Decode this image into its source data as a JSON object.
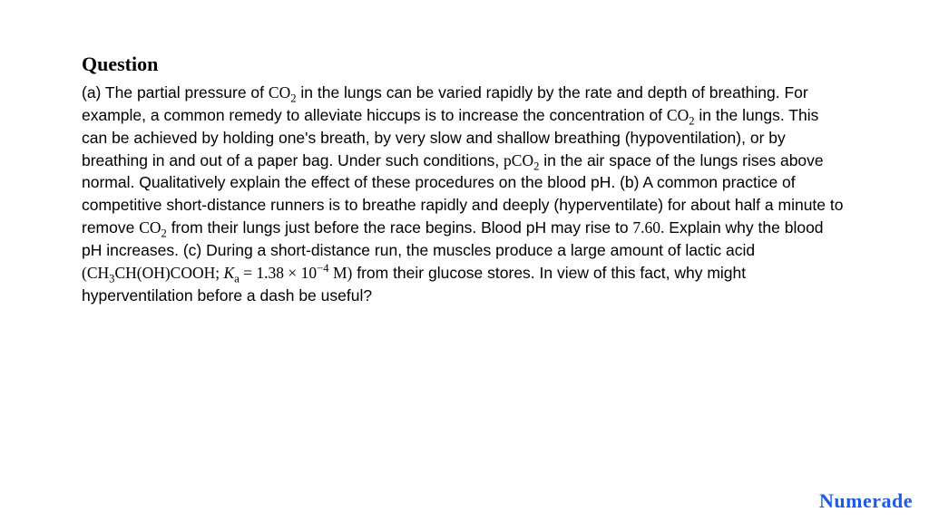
{
  "heading": "Question",
  "body_parts": {
    "p1a": "(a) The partial pressure of ",
    "co2_1": "CO",
    "sub2_1": "2",
    "p1b": " in the lungs can be varied rapidly by the rate and depth of breathing. For example, a common remedy to alleviate hiccups is to increase the concentration of ",
    "co2_2": "CO",
    "sub2_2": "2",
    "p1c": " in the lungs. This can be achieved by holding one's breath, by very slow and shallow breathing (hypoventilation), or by breathing in and out of a paper bag. Under such conditions, ",
    "pco2": "pCO",
    "sub2_3": "2",
    "p1d": " in the air space of the lungs rises above normal. Qualitatively explain the effect of these procedures on the blood pH. (b) A common practice of competitive short-distance runners is to breathe rapidly and deeply (hyperventilate) for about half a minute to remove ",
    "co2_3": "CO",
    "sub2_4": "2",
    "p1e": " from their lungs just before the race begins. Blood pH may rise to ",
    "val760": "7.60.",
    "p1f": " Explain why the blood pH increases. (c) During a short-distance run, the muscles produce a large amount of lactic acid ",
    "formula_open": "(CH",
    "sub3": "3",
    "formula_mid": "CH(OH)COOH; ",
    "ka_sym": "K",
    "ka_sub": "a",
    "eq": " = 1.38 × 10",
    "exp_neg4": "−4",
    "formula_close": " M)",
    "p1g": " from their glucose stores. In view of this fact, why might hyperventilation before a dash be useful?"
  },
  "brand": "Numerade",
  "colors": {
    "text": "#000000",
    "brand": "#1e5ae6",
    "background": "#ffffff"
  },
  "typography": {
    "heading_fontsize": 22,
    "body_fontsize": 17.5,
    "body_lineheight": 1.42,
    "brand_fontsize": 22
  }
}
